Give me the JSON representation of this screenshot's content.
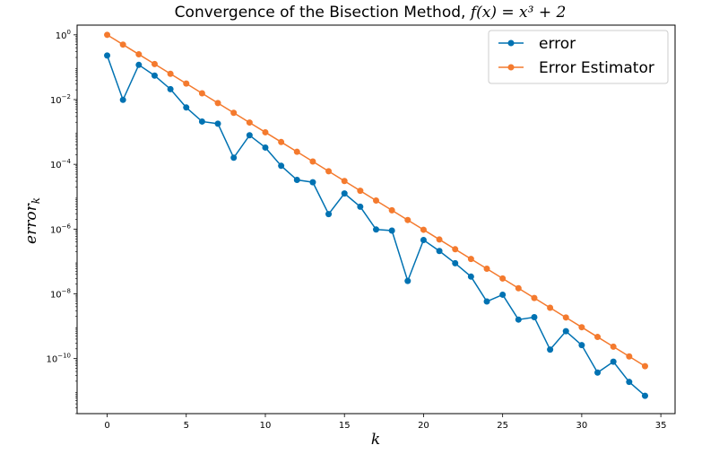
{
  "chart_data": {
    "type": "line",
    "title_main": "Convergence of the Bisection Method, ",
    "title_math": "f(x) = x³ + 2",
    "xlabel": "k",
    "ylabel_base": "error",
    "ylabel_sub": "k",
    "xlim": [
      -1.9,
      35.9
    ],
    "ylim_log10": [
      -11.7,
      0.3
    ],
    "y_scale": "log",
    "grid": false,
    "legend_placement": "top-right",
    "x_ticks": [
      0,
      5,
      10,
      15,
      20,
      25,
      30,
      35
    ],
    "y_tick_exponents": [
      0,
      -2,
      -4,
      -6,
      -8,
      -10
    ],
    "y_tick_base": "10",
    "x": [
      0,
      1,
      2,
      3,
      4,
      5,
      6,
      7,
      8,
      9,
      10,
      11,
      12,
      13,
      14,
      15,
      16,
      17,
      18,
      19,
      20,
      21,
      22,
      23,
      24,
      25,
      26,
      27,
      28,
      29,
      30,
      31,
      32,
      33,
      34
    ],
    "series": [
      {
        "name": "error",
        "color": "#0072b2",
        "values": [
          0.23,
          0.0098,
          0.118,
          0.055,
          0.021,
          0.0057,
          0.0021,
          0.0018,
          0.00016,
          0.00079,
          0.00033,
          9e-05,
          3.3e-05,
          2.8e-05,
          2.9e-06,
          1.26e-05,
          4.9e-06,
          9.7e-07,
          9e-07,
          2.5e-08,
          4.6e-07,
          2.1e-07,
          8.8e-08,
          3.4e-08,
          5.8e-09,
          9.4e-09,
          1.6e-09,
          1.9e-09,
          1.9e-10,
          7e-10,
          2.6e-10,
          3.7e-11,
          8e-11,
          1.9e-11,
          7.1e-12
        ]
      },
      {
        "name": "Error Estimator",
        "color": "#f47a2e",
        "values": [
          1.0,
          0.5,
          0.25,
          0.125,
          0.0625,
          0.03125,
          0.015625,
          0.0078125,
          0.00390625,
          0.001953125,
          0.0009765625,
          0.00048828125,
          0.000244140625,
          0.0001220703125,
          6.103515625e-05,
          3.0517578125e-05,
          1.52587890625e-05,
          7.62939453125e-06,
          3.814697265625e-06,
          1.9073486328125e-06,
          9.5367431640625e-07,
          4.76837158203125e-07,
          2.384185791015625e-07,
          1.1920928955078125e-07,
          5.960464477539063e-08,
          2.9802322387695312e-08,
          1.4901161193847656e-08,
          7.450580596923828e-09,
          3.725290298461914e-09,
          1.862645149230957e-09,
          9.313225746154785e-10,
          4.656612873077393e-10,
          2.3283064365386963e-10,
          1.1641532182693481e-10,
          5.820766091346741e-11
        ]
      }
    ]
  }
}
